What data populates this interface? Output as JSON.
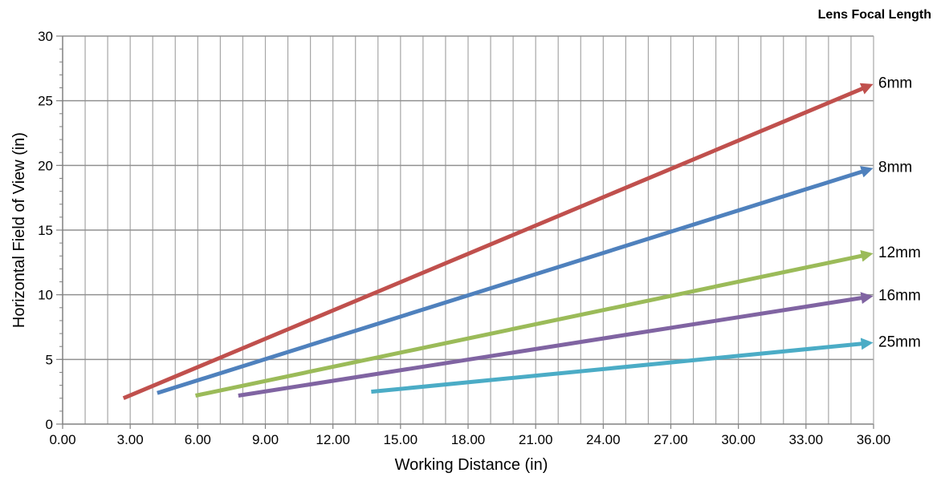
{
  "chart_data": {
    "type": "line",
    "legend_title": "Lens Focal Length",
    "xlabel": "Working Distance (in)",
    "ylabel": "Horizontal Field of View (in)",
    "xlim": [
      0,
      36
    ],
    "ylim": [
      0,
      30
    ],
    "x_ticks": [
      "0.00",
      "3.00",
      "6.00",
      "9.00",
      "12.00",
      "15.00",
      "18.00",
      "21.00",
      "24.00",
      "27.00",
      "30.00",
      "33.00",
      "36.00"
    ],
    "y_ticks": [
      "0",
      "5",
      "10",
      "15",
      "20",
      "25",
      "30"
    ],
    "grid": true,
    "series": [
      {
        "name": "6mm",
        "color": "#c0504d",
        "x": [
          2.7,
          36.0
        ],
        "y": [
          2.0,
          26.3
        ]
      },
      {
        "name": "8mm",
        "color": "#4f81bd",
        "x": [
          4.2,
          36.0
        ],
        "y": [
          2.4,
          19.8
        ]
      },
      {
        "name": "12mm",
        "color": "#9bbb59",
        "x": [
          5.9,
          36.0
        ],
        "y": [
          2.2,
          13.2
        ]
      },
      {
        "name": "16mm",
        "color": "#8064a2",
        "x": [
          7.8,
          36.0
        ],
        "y": [
          2.2,
          9.9
        ]
      },
      {
        "name": "25mm",
        "color": "#4bacc6",
        "x": [
          13.7,
          36.0
        ],
        "y": [
          2.5,
          6.3
        ]
      }
    ]
  }
}
